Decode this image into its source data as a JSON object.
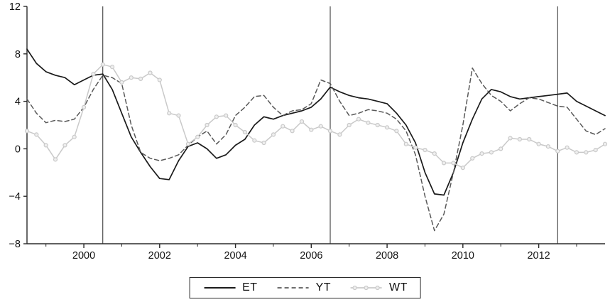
{
  "chart_data": {
    "type": "line",
    "title": "",
    "xlabel": "",
    "ylabel": "",
    "xlim": [
      1998.5,
      2013.75
    ],
    "ylim": [
      -8,
      12
    ],
    "yticks": [
      -8,
      -4,
      0,
      4,
      8,
      12
    ],
    "xticks": [
      2000,
      2002,
      2004,
      2006,
      2008,
      2010,
      2012
    ],
    "vlines": [
      2000.5,
      2006.5,
      2012.5
    ],
    "grid": false,
    "legend_position": "bottom-center",
    "colors": {
      "et": "#1a1a1a",
      "yt": "#595959",
      "wt": "#c9c9c9",
      "axis": "#2b2b2b"
    },
    "x": [
      1998.5,
      1998.75,
      1999,
      1999.25,
      1999.5,
      1999.75,
      2000,
      2000.25,
      2000.5,
      2000.75,
      2001,
      2001.25,
      2001.5,
      2001.75,
      2002,
      2002.25,
      2002.5,
      2002.75,
      2003,
      2003.25,
      2003.5,
      2003.75,
      2004,
      2004.25,
      2004.5,
      2004.75,
      2005,
      2005.25,
      2005.5,
      2005.75,
      2006,
      2006.25,
      2006.5,
      2006.75,
      2007,
      2007.25,
      2007.5,
      2007.75,
      2008,
      2008.25,
      2008.5,
      2008.75,
      2009,
      2009.25,
      2009.5,
      2009.75,
      2010,
      2010.25,
      2010.5,
      2010.75,
      2011,
      2011.25,
      2011.5,
      2011.75,
      2012,
      2012.25,
      2012.5,
      2012.75,
      2013,
      2013.25,
      2013.5,
      2013.75
    ],
    "series": [
      {
        "name": "ET",
        "style": "solid",
        "color": "#1a1a1a",
        "width": 1.7,
        "values": [
          8.4,
          7.2,
          6.5,
          6.2,
          6.0,
          5.4,
          5.8,
          6.2,
          6.3,
          5.0,
          3.0,
          1.0,
          -0.3,
          -1.5,
          -2.5,
          -2.6,
          -1.0,
          0.2,
          0.5,
          0.0,
          -0.8,
          -0.5,
          0.3,
          0.8,
          2.0,
          2.7,
          2.5,
          2.8,
          3.0,
          3.2,
          3.5,
          4.2,
          5.2,
          4.8,
          4.5,
          4.3,
          4.2,
          4.0,
          3.8,
          3.0,
          2.0,
          0.5,
          -2.0,
          -3.8,
          -3.9,
          -2.0,
          0.5,
          2.5,
          4.2,
          5.0,
          4.8,
          4.4,
          4.2,
          4.3,
          4.4,
          4.5,
          4.6,
          4.7,
          4.0,
          3.6,
          3.2,
          2.8
        ]
      },
      {
        "name": "YT",
        "style": "dashed",
        "color": "#595959",
        "width": 1.5,
        "values": [
          4.2,
          3.0,
          2.2,
          2.4,
          2.3,
          2.5,
          3.5,
          5.0,
          6.2,
          6.0,
          5.5,
          2.0,
          -0.3,
          -0.8,
          -1.0,
          -0.8,
          -0.5,
          0.3,
          1.0,
          1.5,
          0.4,
          1.2,
          2.8,
          3.5,
          4.4,
          4.5,
          3.5,
          2.8,
          3.2,
          3.3,
          3.8,
          5.8,
          5.5,
          4.0,
          2.8,
          3.0,
          3.3,
          3.2,
          3.0,
          2.5,
          1.5,
          -0.5,
          -4.0,
          -6.9,
          -5.5,
          -2.0,
          2.0,
          6.8,
          5.5,
          4.5,
          4.0,
          3.2,
          3.8,
          4.3,
          4.2,
          3.9,
          3.6,
          3.5,
          2.5,
          1.5,
          1.2,
          1.7
        ]
      },
      {
        "name": "WT",
        "style": "solid-markers",
        "color": "#c9c9c9",
        "width": 1.5,
        "values": [
          1.5,
          1.2,
          0.3,
          -0.9,
          0.3,
          1.0,
          3.5,
          6.3,
          7.1,
          6.9,
          5.6,
          6.0,
          5.9,
          6.4,
          5.8,
          3.0,
          2.8,
          0.4,
          1.0,
          2.0,
          2.7,
          2.8,
          2.0,
          1.4,
          0.7,
          0.5,
          1.2,
          1.9,
          1.5,
          2.3,
          1.6,
          1.9,
          1.5,
          1.2,
          2.0,
          2.5,
          2.2,
          2.0,
          1.8,
          1.5,
          0.4,
          0.1,
          -0.1,
          -0.4,
          -1.2,
          -1.2,
          -1.6,
          -0.8,
          -0.4,
          -0.3,
          0.0,
          0.9,
          0.8,
          0.8,
          0.4,
          0.2,
          -0.2,
          0.1,
          -0.3,
          -0.3,
          -0.1,
          0.4
        ]
      }
    ]
  },
  "legend": {
    "items": [
      {
        "label": "ET"
      },
      {
        "label": "YT"
      },
      {
        "label": "WT"
      }
    ]
  }
}
